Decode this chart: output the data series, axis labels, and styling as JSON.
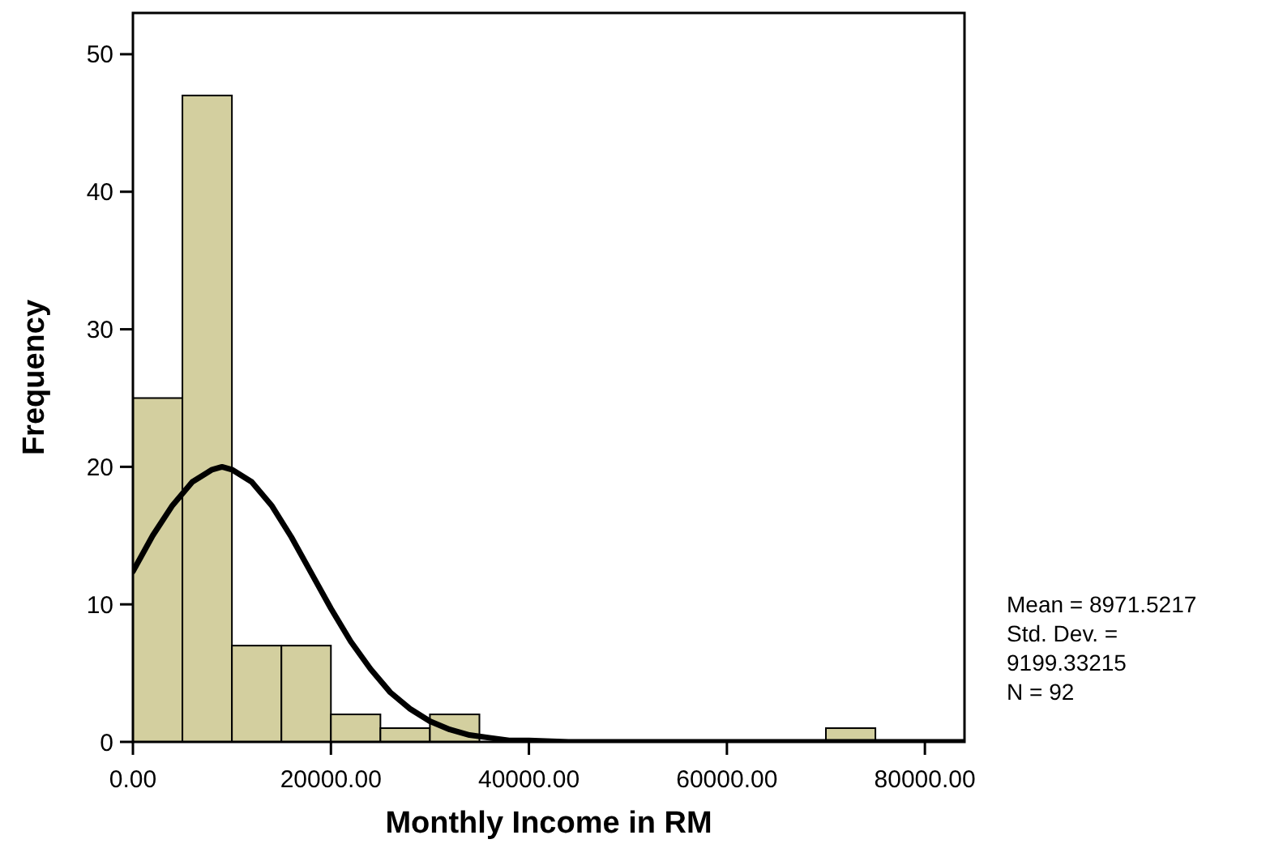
{
  "chart_data": {
    "type": "histogram",
    "xlabel": "Monthly Income in RM",
    "ylabel": "Frequency",
    "bins": [
      0,
      5000,
      10000,
      15000,
      20000,
      25000,
      30000,
      35000,
      40000,
      45000,
      50000,
      55000,
      60000,
      65000,
      70000,
      75000
    ],
    "values": [
      25,
      47,
      7,
      7,
      2,
      1,
      2,
      0,
      0,
      0,
      0,
      0,
      0,
      0,
      1
    ],
    "color": "#d3cf9f",
    "series": [
      {
        "type": "line",
        "color": "#000000",
        "x": [
          0,
          2000,
          4000,
          6000,
          8000,
          9000,
          10000,
          12000,
          14000,
          16000,
          18000,
          20000,
          22000,
          24000,
          26000,
          28000,
          30000,
          32000,
          34000,
          36000,
          38000,
          40000,
          44000,
          50000,
          60000,
          70000,
          84000
        ],
        "values": [
          12.4,
          15,
          17.2,
          18.9,
          19.8,
          20,
          19.8,
          18.9,
          17.2,
          14.9,
          12.3,
          9.7,
          7.3,
          5.3,
          3.6,
          2.4,
          1.5,
          0.9,
          0.5,
          0.3,
          0.1,
          0.1,
          0,
          0,
          0,
          0,
          0
        ]
      }
    ],
    "marker": "none",
    "line_style": "solid",
    "grid": false,
    "xlim": [
      0,
      84000
    ],
    "ylim": [
      0,
      53
    ],
    "xticks": [
      {
        "value": 0,
        "label": "0.00"
      },
      {
        "value": 20000,
        "label": "20000.00"
      },
      {
        "value": 40000,
        "label": "40000.00"
      },
      {
        "value": 60000,
        "label": "60000.00"
      },
      {
        "value": 80000,
        "label": "80000.00"
      }
    ],
    "yticks": [
      0,
      10,
      20,
      30,
      40,
      50
    ],
    "annotations": [
      "Mean = 8971.5217",
      "Std. Dev. =",
      "9199.33215",
      "N = 92"
    ]
  }
}
